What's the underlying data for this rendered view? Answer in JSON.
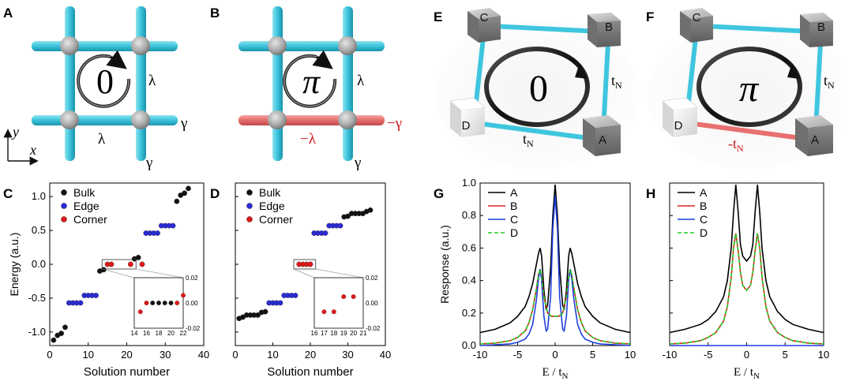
{
  "panel_labels": {
    "A": "A",
    "B": "B",
    "C": "C",
    "D": "D",
    "E": "E",
    "F": "F",
    "G": "G",
    "H": "H"
  },
  "panelA": {
    "phase": "0",
    "lambda_right": "λ",
    "lambda_bottom": "λ",
    "gamma_right": "γ",
    "gamma_bottom": "γ",
    "axis_y": "y",
    "axis_x": "x"
  },
  "panelB": {
    "phase": "π",
    "lambda_right": "λ",
    "lambda_bottom": "−λ",
    "gamma_right": "−γ",
    "gamma_bottom": "γ"
  },
  "panelE": {
    "phase": "0",
    "cube_labels": [
      "C",
      "B",
      "D",
      "A"
    ],
    "tN": "t",
    "tN_sub": "N",
    "tN_bottom": "t",
    "tN_bottom_sub": "N"
  },
  "panelF": {
    "phase": "π",
    "cube_labels": [
      "C",
      "B",
      "D",
      "A"
    ],
    "tN": "t",
    "tN_sub": "N",
    "tN_bottom": "-t",
    "tN_bottom_sub": "N"
  },
  "colors": {
    "bulk": "#111111",
    "edge": "#2a2ad8",
    "corner": "#e01818",
    "rod": "#3fc6de",
    "rod_neg": "#e87070",
    "line_A": "#000000",
    "line_B": "#e02020",
    "line_C": "#1f3fdd",
    "line_D": "#22cc22"
  },
  "chart_data": [
    {
      "id": "C",
      "type": "scatter",
      "xlabel": "Solution number",
      "ylabel": "Energy (a.u.)",
      "xlim": [
        0,
        40
      ],
      "ylim": [
        -1.2,
        1.2
      ],
      "xticks": [
        "0",
        "10",
        "20",
        "30",
        "40"
      ],
      "yticks": [
        "-1.0",
        "-0.5",
        "0.0",
        "0.5",
        "1.0"
      ],
      "legend": [
        "Bulk",
        "Edge",
        "Corner"
      ],
      "series": [
        {
          "name": "Bulk",
          "x": [
            1,
            2,
            3,
            4,
            13,
            14,
            22,
            23,
            33,
            34,
            35,
            36
          ],
          "y": [
            -1.12,
            -1.05,
            -1.02,
            -0.93,
            -0.1,
            -0.08,
            0.08,
            0.1,
            0.93,
            1.02,
            1.05,
            1.12
          ]
        },
        {
          "name": "Edge",
          "x": [
            5,
            6,
            7,
            8,
            9,
            10,
            11,
            12,
            25,
            26,
            27,
            28,
            29,
            30,
            31,
            32
          ],
          "y": [
            -0.57,
            -0.57,
            -0.57,
            -0.57,
            -0.46,
            -0.46,
            -0.46,
            -0.46,
            0.46,
            0.46,
            0.46,
            0.46,
            0.57,
            0.57,
            0.57,
            0.57
          ]
        },
        {
          "name": "Corner",
          "x": [
            15,
            16,
            21,
            24
          ],
          "y": [
            0.0,
            0.0,
            0.0,
            0.0
          ]
        }
      ],
      "inset": {
        "xlim": [
          14,
          22
        ],
        "ylim": [
          -0.02,
          0.02
        ],
        "xticks": [
          "14",
          "16",
          "18",
          "20",
          "22"
        ],
        "yticks": [
          "0.02",
          "0.00",
          "-0.02"
        ],
        "series": [
          {
            "name": "Bulk",
            "x": [
              17,
              18,
              19,
              20
            ],
            "y": [
              0.0,
              0.0,
              0.0,
              0.0
            ]
          },
          {
            "name": "Corner",
            "x": [
              15,
              16,
              21,
              22
            ],
            "y": [
              -0.007,
              0.0,
              0.0,
              0.006
            ]
          }
        ]
      }
    },
    {
      "id": "D",
      "type": "scatter",
      "xlabel": "Solution number",
      "ylabel": "",
      "xlim": [
        0,
        40
      ],
      "ylim": [
        -1.2,
        1.2
      ],
      "xticks": [
        "0",
        "10",
        "20",
        "30",
        "40"
      ],
      "legend": [
        "Bulk",
        "Edge",
        "Corner"
      ],
      "series": [
        {
          "name": "Bulk",
          "x": [
            1,
            2,
            3,
            4,
            5,
            6,
            7,
            8,
            29,
            30,
            31,
            32,
            33,
            34,
            35,
            36
          ],
          "y": [
            -0.8,
            -0.78,
            -0.75,
            -0.75,
            -0.75,
            -0.75,
            -0.71,
            -0.7,
            0.7,
            0.71,
            0.75,
            0.75,
            0.75,
            0.75,
            0.78,
            0.8
          ]
        },
        {
          "name": "Edge",
          "x": [
            9,
            10,
            11,
            12,
            13,
            14,
            15,
            16,
            21,
            22,
            23,
            24,
            25,
            26,
            27,
            28
          ],
          "y": [
            -0.57,
            -0.57,
            -0.57,
            -0.57,
            -0.46,
            -0.46,
            -0.46,
            -0.46,
            0.46,
            0.46,
            0.46,
            0.46,
            0.57,
            0.57,
            0.57,
            0.57
          ]
        },
        {
          "name": "Corner",
          "x": [
            17,
            18,
            19,
            20
          ],
          "y": [
            0.0,
            0.0,
            0.0,
            0.0
          ]
        }
      ],
      "inset": {
        "xlim": [
          16,
          21
        ],
        "ylim": [
          -0.02,
          0.02
        ],
        "xticks": [
          "16",
          "17",
          "18",
          "19",
          "20",
          "21"
        ],
        "yticks": [
          "0.02",
          "0.00",
          "-0.02"
        ],
        "series": [
          {
            "name": "Corner",
            "x": [
              17,
              18,
              19,
              20
            ],
            "y": [
              -0.007,
              -0.007,
              0.005,
              0.005
            ]
          }
        ]
      }
    },
    {
      "id": "G",
      "type": "line",
      "xlabel": "E / t",
      "xlabel_sub": "N",
      "ylabel": "Response (a.u.)",
      "xlim": [
        -10,
        10
      ],
      "ylim": [
        0,
        1
      ],
      "xticks": [
        "-10",
        "-5",
        "0",
        "5",
        "10"
      ],
      "yticks": [
        "0.0",
        "0.2",
        "0.4",
        "0.6",
        "0.8",
        "1.0"
      ],
      "legend": [
        "A",
        "B",
        "C",
        "D"
      ],
      "series": [
        {
          "name": "A",
          "x": [
            -10,
            -8,
            -6,
            -5,
            -4,
            -3.5,
            -3,
            -2.5,
            -2.2,
            -2,
            -1.8,
            -1.5,
            -1.2,
            -1,
            -0.6,
            -0.3,
            0,
            0.3,
            0.6,
            1,
            1.2,
            1.5,
            1.8,
            2,
            2.2,
            2.5,
            3,
            3.5,
            4,
            5,
            6,
            8,
            10
          ],
          "y": [
            0.08,
            0.1,
            0.14,
            0.18,
            0.24,
            0.3,
            0.38,
            0.5,
            0.57,
            0.6,
            0.55,
            0.34,
            0.22,
            0.25,
            0.48,
            0.8,
            0.99,
            0.8,
            0.48,
            0.25,
            0.22,
            0.34,
            0.55,
            0.6,
            0.57,
            0.5,
            0.38,
            0.3,
            0.24,
            0.18,
            0.14,
            0.1,
            0.08
          ]
        },
        {
          "name": "B",
          "x": [
            -10,
            -8,
            -6,
            -5,
            -4,
            -3.5,
            -3,
            -2.5,
            -2.2,
            -2,
            -1.8,
            -1.5,
            -1,
            -0.5,
            0,
            0.5,
            1,
            1.5,
            1.8,
            2,
            2.2,
            2.5,
            3,
            3.5,
            4,
            5,
            6,
            8,
            10
          ],
          "y": [
            0.01,
            0.015,
            0.03,
            0.05,
            0.09,
            0.14,
            0.22,
            0.35,
            0.44,
            0.47,
            0.42,
            0.3,
            0.2,
            0.18,
            0.18,
            0.18,
            0.2,
            0.3,
            0.42,
            0.47,
            0.44,
            0.35,
            0.22,
            0.14,
            0.09,
            0.05,
            0.03,
            0.015,
            0.01
          ]
        },
        {
          "name": "C",
          "x": [
            -10,
            -8,
            -6,
            -5,
            -4,
            -3.5,
            -3,
            -2.5,
            -2.2,
            -2,
            -1.8,
            -1.5,
            -1.2,
            -1,
            -0.6,
            -0.3,
            0,
            0.3,
            0.6,
            1,
            1.2,
            1.5,
            1.8,
            2,
            2.2,
            2.5,
            3,
            3.5,
            4,
            5,
            6,
            8,
            10
          ],
          "y": [
            0.0,
            0.005,
            0.01,
            0.02,
            0.04,
            0.07,
            0.13,
            0.28,
            0.42,
            0.47,
            0.4,
            0.18,
            0.09,
            0.1,
            0.3,
            0.72,
            0.92,
            0.72,
            0.3,
            0.1,
            0.09,
            0.18,
            0.4,
            0.47,
            0.42,
            0.28,
            0.13,
            0.07,
            0.04,
            0.02,
            0.01,
            0.005,
            0.0
          ]
        },
        {
          "name": "D",
          "dashed": true,
          "x": [
            -10,
            -8,
            -6,
            -5,
            -4,
            -3.5,
            -3,
            -2.5,
            -2.2,
            -2,
            -1.8,
            -1.5,
            -1,
            -0.5,
            0,
            0.5,
            1,
            1.5,
            1.8,
            2,
            2.2,
            2.5,
            3,
            3.5,
            4,
            5,
            6,
            8,
            10
          ],
          "y": [
            0.01,
            0.015,
            0.03,
            0.05,
            0.09,
            0.14,
            0.22,
            0.35,
            0.44,
            0.47,
            0.42,
            0.3,
            0.2,
            0.18,
            0.18,
            0.18,
            0.2,
            0.3,
            0.42,
            0.47,
            0.44,
            0.35,
            0.22,
            0.14,
            0.09,
            0.05,
            0.03,
            0.015,
            0.01
          ]
        }
      ]
    },
    {
      "id": "H",
      "type": "line",
      "xlabel": "E / t",
      "xlabel_sub": "N",
      "ylabel": "",
      "xlim": [
        -10,
        10
      ],
      "ylim": [
        0,
        1
      ],
      "xticks": [
        "-10",
        "-5",
        "0",
        "5",
        "10"
      ],
      "legend": [
        "A",
        "B",
        "C",
        "D"
      ],
      "series": [
        {
          "name": "A",
          "x": [
            -10,
            -8,
            -6,
            -5,
            -4,
            -3,
            -2.5,
            -2,
            -1.7,
            -1.41,
            -1.1,
            -0.8,
            -0.5,
            0,
            0.5,
            0.8,
            1.1,
            1.41,
            1.7,
            2,
            2.5,
            3,
            4,
            5,
            6,
            8,
            10
          ],
          "y": [
            0.08,
            0.1,
            0.13,
            0.16,
            0.21,
            0.3,
            0.4,
            0.6,
            0.82,
            0.99,
            0.82,
            0.62,
            0.55,
            0.52,
            0.55,
            0.62,
            0.82,
            0.99,
            0.82,
            0.6,
            0.4,
            0.3,
            0.21,
            0.16,
            0.13,
            0.1,
            0.08
          ]
        },
        {
          "name": "B",
          "x": [
            -10,
            -8,
            -6,
            -5,
            -4,
            -3,
            -2.5,
            -2,
            -1.7,
            -1.41,
            -1.1,
            -0.8,
            -0.5,
            0,
            0.5,
            0.8,
            1.1,
            1.41,
            1.7,
            2,
            2.5,
            3,
            4,
            5,
            6,
            8,
            10
          ],
          "y": [
            0.01,
            0.015,
            0.03,
            0.05,
            0.08,
            0.15,
            0.24,
            0.42,
            0.6,
            0.69,
            0.58,
            0.45,
            0.37,
            0.34,
            0.37,
            0.45,
            0.58,
            0.69,
            0.6,
            0.42,
            0.24,
            0.15,
            0.08,
            0.05,
            0.03,
            0.015,
            0.01
          ]
        },
        {
          "name": "C",
          "x": [
            -10,
            10
          ],
          "y": [
            0.0,
            0.0
          ]
        },
        {
          "name": "D",
          "dashed": true,
          "x": [
            -10,
            -8,
            -6,
            -5,
            -4,
            -3,
            -2.5,
            -2,
            -1.7,
            -1.41,
            -1.1,
            -0.8,
            -0.5,
            0,
            0.5,
            0.8,
            1.1,
            1.41,
            1.7,
            2,
            2.5,
            3,
            4,
            5,
            6,
            8,
            10
          ],
          "y": [
            0.01,
            0.015,
            0.03,
            0.05,
            0.08,
            0.15,
            0.24,
            0.42,
            0.6,
            0.69,
            0.58,
            0.45,
            0.37,
            0.34,
            0.37,
            0.45,
            0.58,
            0.69,
            0.6,
            0.42,
            0.24,
            0.15,
            0.08,
            0.05,
            0.03,
            0.015,
            0.01
          ]
        }
      ]
    }
  ]
}
